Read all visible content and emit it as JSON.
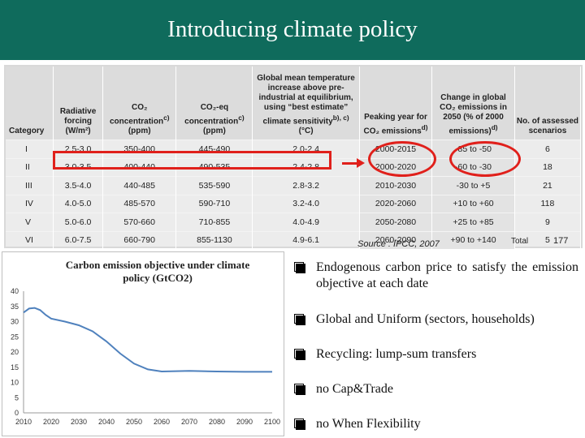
{
  "slide": {
    "title": "Introducing climate policy"
  },
  "table": {
    "headers": [
      "Category",
      "Radiative forcing (W/m²)",
      "CO₂ concentration<sup>c)</sup> (ppm)",
      "CO₂-eq concentration<sup>c)</sup> (ppm)",
      "Global mean temperature increase above pre-industrial at equilibrium, using “best estimate” climate sensitivity<sup>b), c)</sup> (°C)",
      "Peaking year for CO₂ emissions<sup>d)</sup>",
      "Change in global CO₂ emissions in 2050 (% of 2000 emissions)<sup>d)</sup>",
      "No. of assessed scenarios"
    ],
    "rows": [
      [
        "I",
        "2.5-3.0",
        "350-400",
        "445-490",
        "2.0-2.4",
        "2000-2015",
        "-85 to -50",
        "6"
      ],
      [
        "II",
        "3.0-3.5",
        "400-440",
        "490-535",
        "2.4-2.8",
        "2000-2020",
        "-60 to -30",
        "18"
      ],
      [
        "III",
        "3.5-4.0",
        "440-485",
        "535-590",
        "2.8-3.2",
        "2010-2030",
        "-30 to +5",
        "21"
      ],
      [
        "IV",
        "4.0-5.0",
        "485-570",
        "590-710",
        "3.2-4.0",
        "2020-2060",
        "+10 to +60",
        "118"
      ],
      [
        "V",
        "5.0-6.0",
        "570-660",
        "710-855",
        "4.0-4.9",
        "2050-2080",
        "+25 to +85",
        "9"
      ],
      [
        "VI",
        "6.0-7.5",
        "660-790",
        "855-1130",
        "4.9-6.1",
        "2060-2090",
        "+90 to +140",
        "5"
      ]
    ],
    "total_label": "Total",
    "total_value": "177",
    "source": "Source : IPCC, 2007",
    "highlight_color": "#e0201b"
  },
  "chart_data": {
    "type": "line",
    "title": "Carbon emission objective under climate policy (GtCO2)",
    "x": [
      2010,
      2012,
      2014,
      2016,
      2018,
      2020,
      2025,
      2030,
      2035,
      2040,
      2045,
      2050,
      2055,
      2060,
      2065,
      2070,
      2080,
      2090,
      2100
    ],
    "series": [
      {
        "name": "Carbon emission objective",
        "values": [
          33,
          34.3,
          34.5,
          33.8,
          32.2,
          31.0,
          30.0,
          28.8,
          26.8,
          23.5,
          19.5,
          16.2,
          14.3,
          13.6,
          13.7,
          13.8,
          13.6,
          13.5,
          13.5
        ],
        "color": "#4f81bd"
      }
    ],
    "xticks": [
      2010,
      2020,
      2030,
      2040,
      2050,
      2060,
      2070,
      2080,
      2090,
      2100
    ],
    "yticks": [
      0,
      5,
      10,
      15,
      20,
      25,
      30,
      35,
      40
    ],
    "xlim": [
      2010,
      2100
    ],
    "ylim": [
      0,
      40
    ],
    "grid": false
  },
  "bullets": [
    "Endogenous carbon price to satisfy the emission objective at each date",
    "Global and Uniform (sectors, households)",
    "Recycling: lump-sum transfers",
    "no Cap&Trade",
    "no When Flexibility"
  ]
}
